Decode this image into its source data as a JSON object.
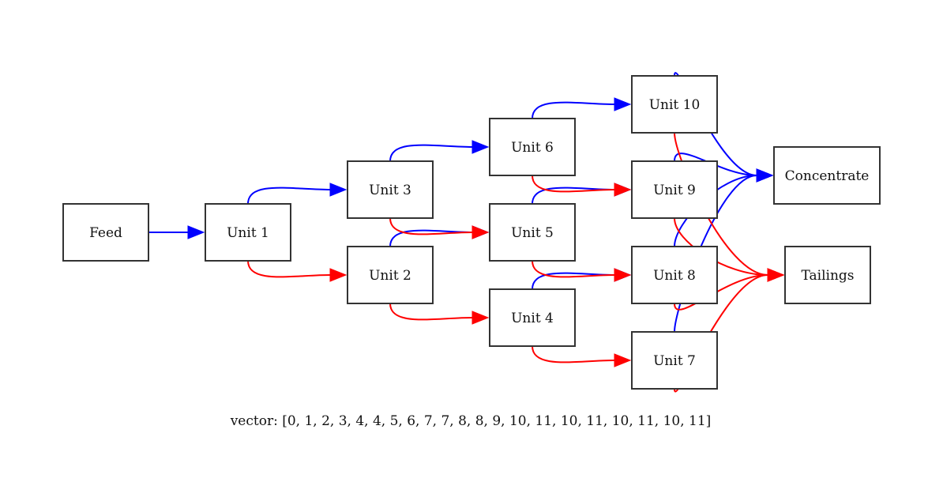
{
  "diagram": {
    "colors": {
      "concentrate_edge": "#0000ff",
      "tailings_edge": "#ff0000",
      "node_border": "#333333",
      "background": "#ffffff"
    },
    "nodes": [
      {
        "id": "feed",
        "label": "Feed"
      },
      {
        "id": "u1",
        "label": "Unit 1"
      },
      {
        "id": "u2",
        "label": "Unit 2"
      },
      {
        "id": "u3",
        "label": "Unit 3"
      },
      {
        "id": "u4",
        "label": "Unit 4"
      },
      {
        "id": "u5",
        "label": "Unit 5"
      },
      {
        "id": "u6",
        "label": "Unit 6"
      },
      {
        "id": "u7",
        "label": "Unit 7"
      },
      {
        "id": "u8",
        "label": "Unit 8"
      },
      {
        "id": "u9",
        "label": "Unit 9"
      },
      {
        "id": "u10",
        "label": "Unit 10"
      },
      {
        "id": "conc",
        "label": "Concentrate"
      },
      {
        "id": "tail",
        "label": "Tailings"
      }
    ],
    "edges": [
      {
        "from": "feed",
        "to": "u1",
        "stream": "feed"
      },
      {
        "from": "u1",
        "to": "u3",
        "stream": "concentrate"
      },
      {
        "from": "u1",
        "to": "u2",
        "stream": "tailings"
      },
      {
        "from": "u2",
        "to": "u5",
        "stream": "concentrate"
      },
      {
        "from": "u2",
        "to": "u4",
        "stream": "tailings"
      },
      {
        "from": "u3",
        "to": "u6",
        "stream": "concentrate"
      },
      {
        "from": "u3",
        "to": "u5",
        "stream": "tailings"
      },
      {
        "from": "u4",
        "to": "u8",
        "stream": "concentrate"
      },
      {
        "from": "u4",
        "to": "u7",
        "stream": "tailings"
      },
      {
        "from": "u5",
        "to": "u9",
        "stream": "concentrate"
      },
      {
        "from": "u5",
        "to": "u8",
        "stream": "tailings"
      },
      {
        "from": "u6",
        "to": "u10",
        "stream": "concentrate"
      },
      {
        "from": "u6",
        "to": "u9",
        "stream": "tailings"
      },
      {
        "from": "u7",
        "to": "conc",
        "stream": "concentrate"
      },
      {
        "from": "u7",
        "to": "tail",
        "stream": "tailings"
      },
      {
        "from": "u8",
        "to": "conc",
        "stream": "concentrate"
      },
      {
        "from": "u8",
        "to": "tail",
        "stream": "tailings"
      },
      {
        "from": "u9",
        "to": "conc",
        "stream": "concentrate"
      },
      {
        "from": "u9",
        "to": "tail",
        "stream": "tailings"
      },
      {
        "from": "u10",
        "to": "conc",
        "stream": "concentrate"
      },
      {
        "from": "u10",
        "to": "tail",
        "stream": "tailings"
      }
    ],
    "caption": "vector: [0, 1, 2, 3, 4, 4, 5, 6, 7, 7, 8, 8, 9, 10, 11, 10, 11, 10, 11, 10, 11]"
  }
}
